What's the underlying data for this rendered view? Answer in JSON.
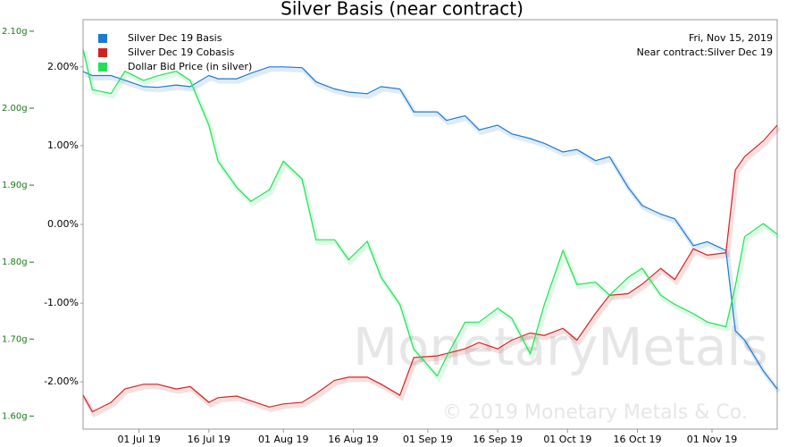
{
  "chart_data": {
    "type": "line",
    "title": "Silver Basis (near contract)",
    "annotations": [
      "Fri, Nov 15, 2019",
      "Near contract:Silver Dec 19"
    ],
    "watermark": "MonetaryMetals",
    "copyright": "© 2019 Monetary Metals & Co.",
    "x": [
      "2019-06-19",
      "2019-06-21",
      "2019-06-25",
      "2019-06-28",
      "2019-07-02",
      "2019-07-05",
      "2019-07-09",
      "2019-07-12",
      "2019-07-16",
      "2019-07-18",
      "2019-07-22",
      "2019-07-25",
      "2019-07-29",
      "2019-08-01",
      "2019-08-05",
      "2019-08-08",
      "2019-08-12",
      "2019-08-15",
      "2019-08-19",
      "2019-08-22",
      "2019-08-26",
      "2019-08-29",
      "2019-09-03",
      "2019-09-05",
      "2019-09-09",
      "2019-09-12",
      "2019-09-16",
      "2019-09-19",
      "2019-09-23",
      "2019-09-26",
      "2019-09-30",
      "2019-10-03",
      "2019-10-07",
      "2019-10-10",
      "2019-10-14",
      "2019-10-17",
      "2019-10-21",
      "2019-10-24",
      "2019-10-28",
      "2019-10-31",
      "2019-11-04",
      "2019-11-06",
      "2019-11-08",
      "2019-11-12",
      "2019-11-15"
    ],
    "xlim": [
      "2019-06-19",
      "2019-11-15"
    ],
    "xticks": [
      {
        "value": "2019-07-01",
        "label": "01 Jul 19"
      },
      {
        "value": "2019-07-16",
        "label": "16 Jul 19"
      },
      {
        "value": "2019-08-01",
        "label": "01 Aug 19"
      },
      {
        "value": "2019-08-16",
        "label": "16 Aug 19"
      },
      {
        "value": "2019-09-01",
        "label": "01 Sep 19"
      },
      {
        "value": "2019-09-16",
        "label": "16 Sep 19"
      },
      {
        "value": "2019-10-01",
        "label": "01 Oct 19"
      },
      {
        "value": "2019-10-16",
        "label": "16 Oct 19"
      },
      {
        "value": "2019-11-01",
        "label": "01 Nov 19"
      }
    ],
    "ylim": [
      -2.6,
      2.6
    ],
    "yticks": [
      {
        "value": 2,
        "label": "2.00%"
      },
      {
        "value": 1,
        "label": "1.00%"
      },
      {
        "value": 0,
        "label": "0.00%"
      },
      {
        "value": -1,
        "label": "-1.00%"
      },
      {
        "value": -2,
        "label": "-2.00%"
      }
    ],
    "y2lim": [
      1.583,
      2.115
    ],
    "y2ticks": [
      {
        "value": 2.1,
        "label": "2.10g"
      },
      {
        "value": 2.0,
        "label": "2.00g"
      },
      {
        "value": 1.9,
        "label": "1.90g"
      },
      {
        "value": 1.8,
        "label": "1.80g"
      },
      {
        "value": 1.7,
        "label": "1.70g"
      },
      {
        "value": 1.6,
        "label": "1.60g"
      }
    ],
    "legend": "top-left",
    "series": [
      {
        "name": "Silver Dec 19 Basis",
        "color": "#1f78d1",
        "values": [
          1.94,
          1.89,
          1.89,
          1.83,
          1.75,
          1.74,
          1.77,
          1.75,
          1.89,
          1.85,
          1.85,
          1.92,
          2.0,
          2.0,
          1.99,
          1.81,
          1.72,
          1.68,
          1.66,
          1.75,
          1.72,
          1.43,
          1.43,
          1.32,
          1.38,
          1.2,
          1.26,
          1.15,
          1.09,
          1.03,
          0.92,
          0.95,
          0.81,
          0.86,
          0.47,
          0.24,
          0.13,
          0.07,
          -0.27,
          -0.22,
          -0.33,
          -1.35,
          -1.47,
          -1.86,
          -2.09
        ]
      },
      {
        "name": "Silver Dec 19 Cobasis",
        "color": "#d42020",
        "values": [
          -2.17,
          -2.38,
          -2.26,
          -2.09,
          -2.03,
          -2.03,
          -2.09,
          -2.06,
          -2.26,
          -2.2,
          -2.18,
          -2.24,
          -2.32,
          -2.28,
          -2.26,
          -2.15,
          -1.98,
          -1.94,
          -1.94,
          -2.03,
          -2.17,
          -1.69,
          -1.67,
          -1.64,
          -1.58,
          -1.5,
          -1.58,
          -1.47,
          -1.38,
          -1.41,
          -1.32,
          -1.47,
          -1.13,
          -0.9,
          -0.88,
          -0.76,
          -0.56,
          -0.7,
          -0.31,
          -0.39,
          -0.36,
          0.69,
          0.86,
          1.06,
          1.26
        ]
      },
      {
        "name": "Dollar Bid Price (in silver)",
        "color": "#22e055",
        "axis": "y2",
        "values": [
          2.077,
          2.024,
          2.019,
          2.048,
          2.036,
          2.042,
          2.048,
          2.036,
          1.978,
          1.931,
          1.897,
          1.879,
          1.894,
          1.931,
          1.908,
          1.829,
          1.829,
          1.803,
          1.827,
          1.78,
          1.745,
          1.687,
          1.652,
          1.677,
          1.722,
          1.722,
          1.74,
          1.727,
          1.681,
          1.745,
          1.815,
          1.771,
          1.774,
          1.757,
          1.78,
          1.792,
          1.757,
          1.745,
          1.733,
          1.722,
          1.716,
          1.769,
          1.833,
          1.85,
          1.836
        ]
      }
    ]
  }
}
